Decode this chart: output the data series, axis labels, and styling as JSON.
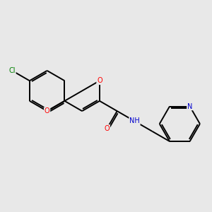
{
  "background_color": "#e8e8e8",
  "bond_color": "#000000",
  "atom_colors": {
    "O": "#ff0000",
    "N": "#0000cd",
    "Cl": "#008000",
    "H": "#808080"
  },
  "figsize": [
    3.0,
    3.0
  ],
  "dpi": 100,
  "lw": 1.4,
  "fs": 7.0
}
